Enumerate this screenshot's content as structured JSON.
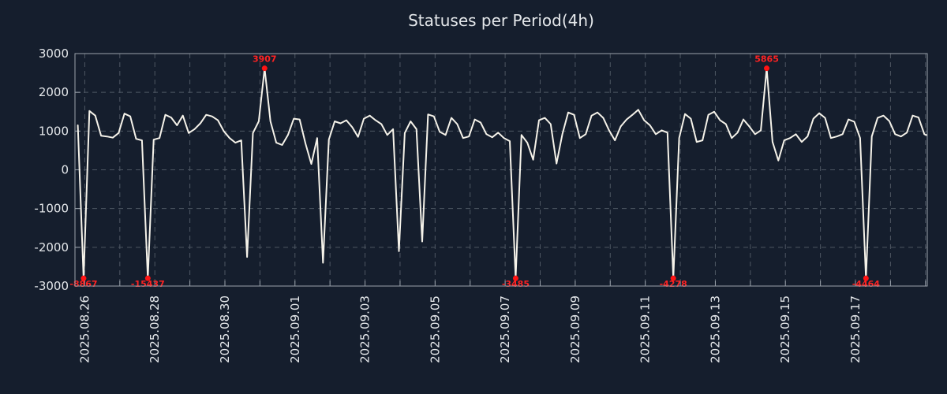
{
  "title": "Statuses per Period(4h)",
  "colors": {
    "background": "#151e2d",
    "text": "#e4e7ea",
    "grid": "#4e5763",
    "axis": "#9aa2ab",
    "line": "#f5f2e9",
    "marker": "#ff1414",
    "annotation": "#ff2222"
  },
  "chart_data": {
    "type": "line",
    "title": "Statuses per Period(4h)",
    "xlabel": "",
    "ylabel": "",
    "grid": "dashed",
    "legend": "none",
    "y_axis": {
      "range": [
        -3000,
        3000
      ],
      "ticks": [
        -3000,
        -2000,
        -1000,
        0,
        1000,
        2000,
        3000
      ],
      "tick_labels": [
        "-3000",
        "-2000",
        "-1000",
        "0",
        "1000",
        "2000",
        "3000"
      ]
    },
    "x_axis": {
      "range_days": [
        -0.28,
        24.05
      ],
      "grid_step_days": 1,
      "tick_days": [
        0,
        2,
        4,
        6,
        8,
        10,
        12,
        14,
        16,
        18,
        20,
        22
      ],
      "tick_labels": [
        "2025.08.26",
        "2025.08.28",
        "2025.08.30",
        "2025.09.01",
        "2025.09.03",
        "2025.09.05",
        "2025.09.07",
        "2025.09.09",
        "2025.09.11",
        "2025.09.13",
        "2025.09.15",
        "2025.09.17"
      ]
    },
    "series": {
      "name": "statuses-per-4h",
      "x_start_day": -0.2,
      "x_step_day": 0.1666667,
      "values": [
        1150,
        -8867,
        1520,
        1400,
        880,
        860,
        830,
        950,
        1450,
        1380,
        800,
        760,
        -15437,
        780,
        820,
        1420,
        1350,
        1150,
        1400,
        950,
        1050,
        1200,
        1420,
        1380,
        1280,
        1000,
        820,
        700,
        760,
        -2250,
        950,
        1250,
        3907,
        1250,
        700,
        640,
        900,
        1320,
        1300,
        680,
        150,
        820,
        -2400,
        780,
        1250,
        1200,
        1280,
        1100,
        850,
        1320,
        1400,
        1280,
        1180,
        900,
        1050,
        -2100,
        950,
        1250,
        1050,
        -1850,
        1430,
        1380,
        980,
        900,
        1340,
        1180,
        820,
        860,
        1300,
        1220,
        920,
        840,
        960,
        820,
        740,
        -3485,
        900,
        700,
        260,
        1280,
        1340,
        1180,
        160,
        920,
        1480,
        1420,
        820,
        920,
        1400,
        1480,
        1340,
        1020,
        760,
        1120,
        1300,
        1420,
        1550,
        1280,
        1150,
        920,
        1020,
        960,
        -4278,
        820,
        1440,
        1320,
        720,
        760,
        1420,
        1500,
        1280,
        1180,
        820,
        960,
        1300,
        1120,
        920,
        1020,
        5865,
        720,
        240,
        760,
        820,
        920,
        720,
        860,
        1320,
        1460,
        1340,
        820,
        860,
        920,
        1300,
        1240,
        820,
        -4464,
        860,
        1340,
        1400,
        1260,
        920,
        860,
        960,
        1400,
        1350,
        920,
        860
      ]
    },
    "annotations": [
      {
        "index": 1,
        "value": -8867,
        "label": "-8867"
      },
      {
        "index": 12,
        "value": -15437,
        "label": "-15437"
      },
      {
        "index": 32,
        "value": 3907,
        "label": "3907"
      },
      {
        "index": 75,
        "value": -3485,
        "label": "-3485"
      },
      {
        "index": 102,
        "value": -4278,
        "label": "-4278"
      },
      {
        "index": 118,
        "value": 5865,
        "label": "5865"
      },
      {
        "index": 135,
        "value": -4464,
        "label": "-4464"
      }
    ],
    "display_clamp": {
      "top": 2620,
      "bottom": -2800
    }
  }
}
